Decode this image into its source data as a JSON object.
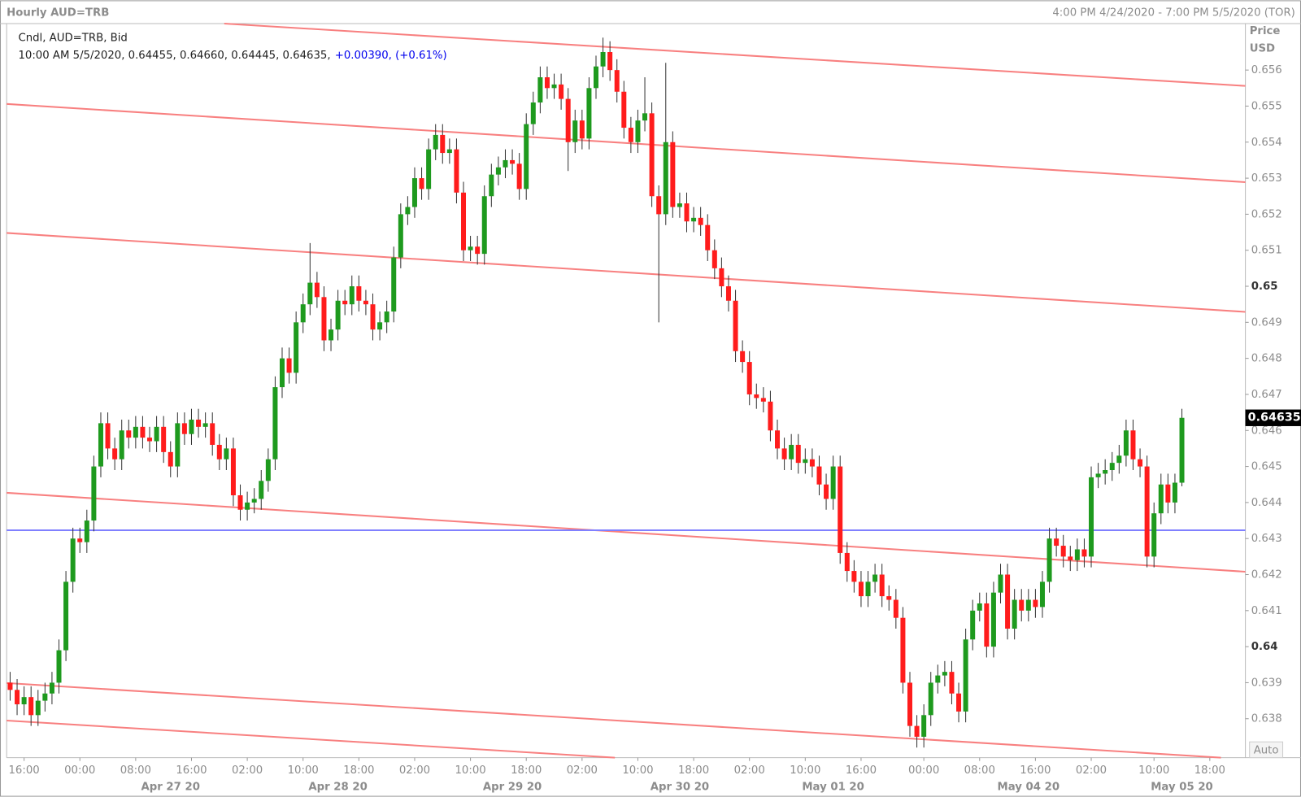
{
  "chart_data": {
    "type": "candlestick",
    "title": "Hourly AUD=TRB",
    "date_range": "4:00 PM 4/24/2020 - 7:00 PM 5/5/2020 (TOR)",
    "axis_label": "Price",
    "axis_unit": "USD",
    "legend": "Cndl, AUD=TRB, Bid",
    "info_text": "10:00 AM 5/5/2020, 0.64455, 0.64660, 0.64445, 0.64635,",
    "change_text": "+0.00390, (+0.61%)",
    "scale_mode": "Auto",
    "up_color": "#1e9a1e",
    "down_color": "#ff1c1c",
    "open": [
      0.639,
      0.6388,
      0.6384,
      0.6386,
      0.6381,
      0.6385,
      0.6387,
      0.639,
      0.6399,
      0.6418,
      0.643,
      0.6429,
      0.6435,
      0.645,
      0.6462,
      0.6455,
      0.6452,
      0.646,
      0.6458,
      0.6461,
      0.6458,
      0.6457,
      0.6461,
      0.6454,
      0.645,
      0.6462,
      0.6459,
      0.6463,
      0.6461,
      0.6462,
      0.6456,
      0.6452,
      0.6455,
      0.6442,
      0.6438,
      0.644,
      0.6441,
      0.6446,
      0.6452,
      0.6472,
      0.648,
      0.6476,
      0.649,
      0.6495,
      0.6501,
      0.6497,
      0.6485,
      0.6488,
      0.6496,
      0.6495,
      0.65,
      0.6496,
      0.6495,
      0.6488,
      0.649,
      0.6493,
      0.6508,
      0.652,
      0.6522,
      0.653,
      0.6527,
      0.6538,
      0.6542,
      0.6537,
      0.6538,
      0.6526,
      0.651,
      0.6511,
      0.6509,
      0.6525,
      0.6531,
      0.6533,
      0.6535,
      0.6534,
      0.6527,
      0.6545,
      0.6551,
      0.6558,
      0.6555,
      0.6556,
      0.6552,
      0.654,
      0.6546,
      0.6541,
      0.6555,
      0.6561,
      0.6565,
      0.656,
      0.6554,
      0.6544,
      0.654,
      0.6546,
      0.6548,
      0.6525,
      0.652,
      0.654,
      0.6522,
      0.6523,
      0.6518,
      0.6519,
      0.6517,
      0.651,
      0.6505,
      0.65,
      0.6496,
      0.6482,
      0.6479,
      0.647,
      0.6469,
      0.6468,
      0.646,
      0.6455,
      0.6452,
      0.6456,
      0.6451,
      0.6452,
      0.645,
      0.6445,
      0.6441,
      0.645,
      0.6426,
      0.6421,
      0.6418,
      0.6414,
      0.6418,
      0.642,
      0.6414,
      0.6413,
      0.6408,
      0.639,
      0.6378,
      0.6375,
      0.6381,
      0.639,
      0.6392,
      0.6393,
      0.6387,
      0.6382,
      0.6402,
      0.641,
      0.6412,
      0.64,
      0.6415,
      0.642,
      0.6405,
      0.6413,
      0.641,
      0.6413,
      0.6411,
      0.6418,
      0.643,
      0.6428,
      0.6425,
      0.6424,
      0.6427,
      0.6425,
      0.6447,
      0.6448,
      0.6449,
      0.6451,
      0.6453,
      0.646,
      0.6452,
      0.645,
      0.6425,
      0.6437,
      0.6445,
      0.644,
      0.64455
    ],
    "high": [
      0.6393,
      0.6391,
      0.6389,
      0.6389,
      0.6388,
      0.639,
      0.6393,
      0.6402,
      0.6421,
      0.6433,
      0.6433,
      0.6438,
      0.6453,
      0.6465,
      0.6465,
      0.6458,
      0.6463,
      0.6463,
      0.6464,
      0.6464,
      0.6461,
      0.6464,
      0.6464,
      0.6457,
      0.6465,
      0.6465,
      0.6466,
      0.6466,
      0.6465,
      0.6465,
      0.6459,
      0.6458,
      0.6458,
      0.6445,
      0.6443,
      0.6444,
      0.6449,
      0.6455,
      0.6475,
      0.6483,
      0.6483,
      0.6493,
      0.6498,
      0.6512,
      0.6504,
      0.65,
      0.6491,
      0.6499,
      0.6499,
      0.6503,
      0.6503,
      0.6499,
      0.6498,
      0.6493,
      0.6496,
      0.6511,
      0.6523,
      0.6525,
      0.6533,
      0.6533,
      0.6541,
      0.6545,
      0.6545,
      0.6541,
      0.6541,
      0.6529,
      0.6514,
      0.6514,
      0.6528,
      0.6534,
      0.6536,
      0.6538,
      0.6538,
      0.6537,
      0.6548,
      0.6554,
      0.6561,
      0.6561,
      0.6559,
      0.6559,
      0.6555,
      0.6549,
      0.6549,
      0.6558,
      0.6564,
      0.6569,
      0.6568,
      0.6563,
      0.6557,
      0.6547,
      0.6549,
      0.6558,
      0.6551,
      0.6528,
      0.6562,
      0.6543,
      0.6526,
      0.6526,
      0.6522,
      0.6522,
      0.652,
      0.6513,
      0.6508,
      0.6503,
      0.6499,
      0.6485,
      0.6482,
      0.6473,
      0.6472,
      0.6471,
      0.6463,
      0.6458,
      0.6459,
      0.6459,
      0.6455,
      0.6455,
      0.6453,
      0.6448,
      0.6453,
      0.6453,
      0.6429,
      0.6424,
      0.6421,
      0.6421,
      0.6423,
      0.6423,
      0.6417,
      0.6416,
      0.6411,
      0.6393,
      0.6381,
      0.6384,
      0.6393,
      0.6395,
      0.6396,
      0.6396,
      0.639,
      0.6405,
      0.6413,
      0.6415,
      0.6415,
      0.6418,
      0.6423,
      0.6423,
      0.6416,
      0.6416,
      0.6416,
      0.6416,
      0.6421,
      0.6433,
      0.6433,
      0.6431,
      0.6428,
      0.643,
      0.643,
      0.645,
      0.6451,
      0.6452,
      0.6454,
      0.6456,
      0.6463,
      0.6463,
      0.6455,
      0.6453,
      0.644,
      0.6448,
      0.6448,
      0.6448,
      0.6466
    ],
    "low": [
      0.6385,
      0.6381,
      0.6381,
      0.6378,
      0.6378,
      0.6382,
      0.6384,
      0.6387,
      0.6396,
      0.6415,
      0.6426,
      0.6426,
      0.6432,
      0.6447,
      0.6452,
      0.6449,
      0.6449,
      0.6455,
      0.6455,
      0.6455,
      0.6454,
      0.6454,
      0.6451,
      0.6447,
      0.6447,
      0.6456,
      0.6456,
      0.6458,
      0.6458,
      0.6453,
      0.6449,
      0.6449,
      0.6439,
      0.6435,
      0.6435,
      0.6437,
      0.6438,
      0.6443,
      0.6449,
      0.6469,
      0.6473,
      0.6473,
      0.6487,
      0.6492,
      0.6494,
      0.6482,
      0.6482,
      0.6485,
      0.6492,
      0.6492,
      0.6493,
      0.6492,
      0.6485,
      0.6485,
      0.6487,
      0.649,
      0.6505,
      0.6517,
      0.6519,
      0.6524,
      0.6524,
      0.6535,
      0.6534,
      0.6534,
      0.6523,
      0.6507,
      0.6507,
      0.6506,
      0.6506,
      0.6522,
      0.6528,
      0.653,
      0.6531,
      0.6524,
      0.6524,
      0.6542,
      0.6548,
      0.6552,
      0.6552,
      0.6549,
      0.6532,
      0.6537,
      0.6538,
      0.6538,
      0.6552,
      0.6558,
      0.6557,
      0.6551,
      0.6541,
      0.6537,
      0.6537,
      0.6543,
      0.6522,
      0.649,
      0.6517,
      0.6519,
      0.6519,
      0.6515,
      0.6515,
      0.6514,
      0.6507,
      0.6502,
      0.6497,
      0.6493,
      0.6479,
      0.6476,
      0.6467,
      0.6466,
      0.6465,
      0.6457,
      0.6452,
      0.6449,
      0.6449,
      0.6448,
      0.6448,
      0.6447,
      0.6442,
      0.6438,
      0.6438,
      0.6423,
      0.6418,
      0.6415,
      0.6411,
      0.6411,
      0.6415,
      0.6411,
      0.641,
      0.6405,
      0.6387,
      0.6375,
      0.6372,
      0.6372,
      0.6378,
      0.6387,
      0.6389,
      0.6384,
      0.6379,
      0.6379,
      0.6399,
      0.6407,
      0.6397,
      0.6397,
      0.6412,
      0.6402,
      0.6402,
      0.6407,
      0.6407,
      0.6408,
      0.6408,
      0.6415,
      0.6425,
      0.6422,
      0.6421,
      0.6421,
      0.6422,
      0.6422,
      0.6444,
      0.6445,
      0.6446,
      0.6448,
      0.645,
      0.6449,
      0.6447,
      0.6422,
      0.6422,
      0.6434,
      0.6437,
      0.6437,
      0.64445
    ],
    "close": [
      0.6388,
      0.6384,
      0.6386,
      0.6381,
      0.6385,
      0.6387,
      0.639,
      0.6399,
      0.6418,
      0.643,
      0.6429,
      0.6435,
      0.645,
      0.6462,
      0.6455,
      0.6452,
      0.646,
      0.6458,
      0.6461,
      0.6458,
      0.6457,
      0.6461,
      0.6454,
      0.645,
      0.6462,
      0.6459,
      0.6463,
      0.6461,
      0.6462,
      0.6456,
      0.6452,
      0.6455,
      0.6442,
      0.6438,
      0.644,
      0.6441,
      0.6446,
      0.6452,
      0.6472,
      0.648,
      0.6476,
      0.649,
      0.6495,
      0.6501,
      0.6497,
      0.6485,
      0.6488,
      0.6496,
      0.6495,
      0.65,
      0.6496,
      0.6495,
      0.6488,
      0.649,
      0.6493,
      0.6508,
      0.652,
      0.6522,
      0.653,
      0.6527,
      0.6538,
      0.6542,
      0.6537,
      0.6538,
      0.6526,
      0.651,
      0.6511,
      0.6509,
      0.6525,
      0.6531,
      0.6533,
      0.6535,
      0.6534,
      0.6527,
      0.6545,
      0.6551,
      0.6558,
      0.6555,
      0.6556,
      0.6552,
      0.654,
      0.6546,
      0.6541,
      0.6555,
      0.6561,
      0.6565,
      0.656,
      0.6554,
      0.6544,
      0.654,
      0.6546,
      0.6548,
      0.6525,
      0.652,
      0.654,
      0.6522,
      0.6523,
      0.6518,
      0.6519,
      0.6517,
      0.651,
      0.6505,
      0.65,
      0.6496,
      0.6482,
      0.6479,
      0.647,
      0.6469,
      0.6468,
      0.646,
      0.6455,
      0.6452,
      0.6456,
      0.6451,
      0.6452,
      0.645,
      0.6445,
      0.6441,
      0.645,
      0.6426,
      0.6421,
      0.6418,
      0.6414,
      0.6418,
      0.642,
      0.6414,
      0.6413,
      0.6408,
      0.639,
      0.6378,
      0.6375,
      0.6381,
      0.639,
      0.6392,
      0.6393,
      0.6387,
      0.6382,
      0.6402,
      0.641,
      0.6412,
      0.64,
      0.6415,
      0.642,
      0.6405,
      0.6413,
      0.641,
      0.6413,
      0.6411,
      0.6418,
      0.643,
      0.6428,
      0.6425,
      0.6424,
      0.6427,
      0.6425,
      0.6447,
      0.6448,
      0.6449,
      0.6451,
      0.6453,
      0.646,
      0.6452,
      0.645,
      0.6425,
      0.6437,
      0.6445,
      0.644,
      0.64455,
      0.64635
    ],
    "xlim": [
      -0.5,
      177.1
    ],
    "ylim": [
      0.63692,
      0.65729
    ],
    "yticks": [
      0.638,
      0.639,
      0.64,
      0.641,
      0.642,
      0.643,
      0.644,
      0.645,
      0.646,
      0.647,
      0.648,
      0.649,
      0.65,
      0.651,
      0.652,
      0.653,
      0.654,
      0.655,
      0.656
    ],
    "xticks": [
      {
        "value": 2,
        "label": "16:00"
      },
      {
        "value": 10,
        "label": "00:00"
      },
      {
        "value": 18,
        "label": "08:00"
      },
      {
        "value": 26,
        "label": "16:00"
      },
      {
        "value": 34,
        "label": "02:00"
      },
      {
        "value": 42,
        "label": "10:00"
      },
      {
        "value": 50,
        "label": "18:00"
      },
      {
        "value": 58,
        "label": "02:00"
      },
      {
        "value": 66,
        "label": "10:00"
      },
      {
        "value": 74,
        "label": "18:00"
      },
      {
        "value": 82,
        "label": "02:00"
      },
      {
        "value": 90,
        "label": "10:00"
      },
      {
        "value": 98,
        "label": "18:00"
      },
      {
        "value": 106,
        "label": "02:00"
      },
      {
        "value": 114,
        "label": "10:00"
      },
      {
        "value": 122,
        "label": "16:00"
      },
      {
        "value": 131,
        "label": "00:00"
      },
      {
        "value": 139,
        "label": "08:00"
      },
      {
        "value": 147,
        "label": "16:00"
      },
      {
        "value": 155,
        "label": "02:00"
      },
      {
        "value": 164,
        "label": "10:00"
      },
      {
        "value": 172,
        "label": "18:00"
      }
    ],
    "date_ticks": [
      {
        "value": 23,
        "label": "Apr 27 20"
      },
      {
        "value": 47,
        "label": "Apr 28 20"
      },
      {
        "value": 72,
        "label": "Apr 29 20"
      },
      {
        "value": 96,
        "label": "Apr 30 20"
      },
      {
        "value": 118,
        "label": "May 01 20"
      },
      {
        "value": 146,
        "label": "May 04 20"
      },
      {
        "value": 168,
        "label": "May 05 20"
      }
    ],
    "trendlines": [
      {
        "x": [
          30.7,
          177.1
        ],
        "y": [
          0.65729,
          0.65556
        ],
        "color": "#f88080"
      },
      {
        "x": [
          -0.5,
          177.1
        ],
        "y": [
          0.65506,
          0.65289
        ],
        "color": "#f88080"
      },
      {
        "x": [
          -0.5,
          177.1
        ],
        "y": [
          0.65148,
          0.64929
        ],
        "color": "#f88080"
      },
      {
        "x": [
          -0.5,
          177.1
        ],
        "y": [
          0.64427,
          0.64208
        ],
        "color": "#f88080"
      },
      {
        "x": [
          -0.5,
          173.6
        ],
        "y": [
          0.63899,
          0.63692
        ],
        "color": "#f88080"
      },
      {
        "x": [
          -0.5,
          86.7
        ],
        "y": [
          0.63795,
          0.63692
        ],
        "color": "#f88080"
      },
      {
        "x": [
          -0.5,
          177.1
        ],
        "y": [
          0.64323,
          0.64323
        ],
        "color": "#8080ff"
      }
    ]
  }
}
